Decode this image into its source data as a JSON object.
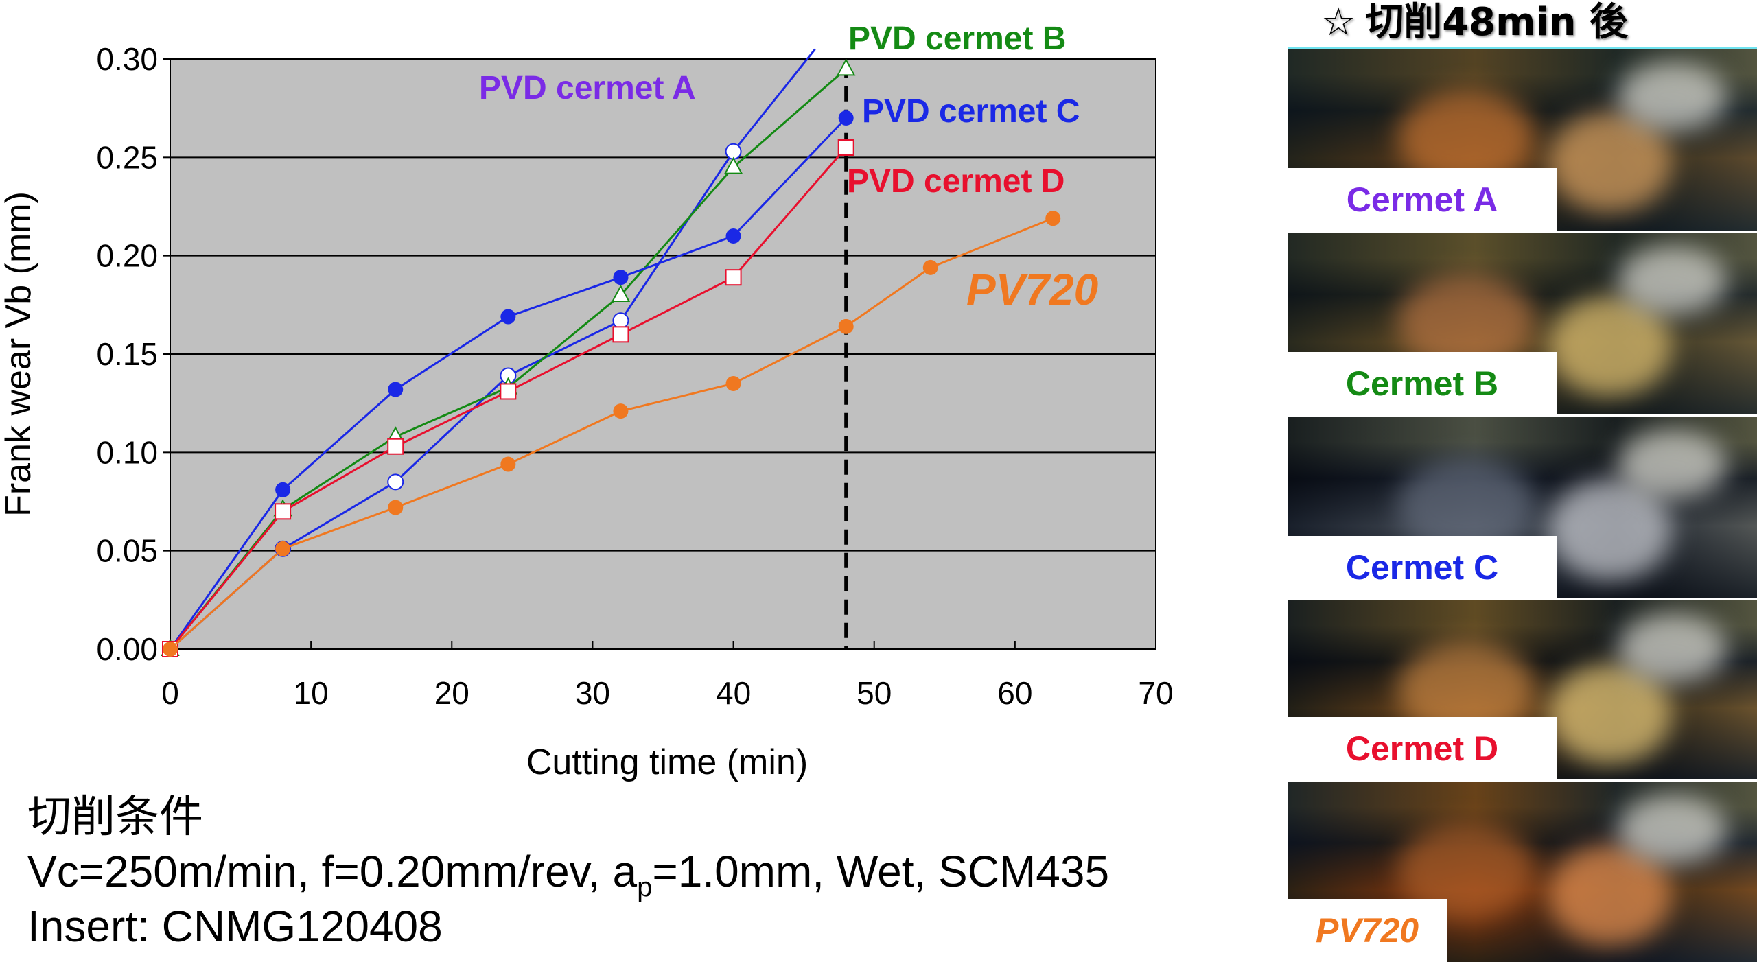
{
  "chart_data": {
    "type": "line",
    "xlabel": "Cutting time (min)",
    "ylabel": "Frank wear Vb (mm)",
    "xlim": [
      0,
      70
    ],
    "ylim": [
      0,
      0.3
    ],
    "x_ticks": [
      "0",
      "10",
      "20",
      "30",
      "40",
      "50",
      "60",
      "70"
    ],
    "y_ticks": [
      "0.00",
      "0.05",
      "0.10",
      "0.15",
      "0.20",
      "0.25",
      "0.30"
    ],
    "grid": "horizontal",
    "plot_background": "#c0c0c0",
    "reference_line": {
      "x": 48,
      "style": "dashed",
      "color": "#000000"
    },
    "series": [
      {
        "name": "PVD cermet A",
        "color": "#7a2be6",
        "line_color": "#1a28e6",
        "marker": "open-circle",
        "x": [
          0,
          8,
          16,
          24,
          32,
          40,
          45.8
        ],
        "y": [
          0.0,
          0.051,
          0.085,
          0.139,
          0.167,
          0.253,
          0.305
        ]
      },
      {
        "name": "PVD cermet B",
        "color": "#148a14",
        "line_color": "#148a14",
        "marker": "open-triangle",
        "x": [
          0,
          8,
          16,
          24,
          32,
          40,
          48
        ],
        "y": [
          0.0,
          0.071,
          0.108,
          0.133,
          0.18,
          0.245,
          0.295
        ]
      },
      {
        "name": "PVD cermet C",
        "color": "#1a28e6",
        "line_color": "#1a28e6",
        "marker": "filled-circle",
        "x": [
          0,
          8,
          16,
          24,
          32,
          40,
          48
        ],
        "y": [
          0.0,
          0.081,
          0.132,
          0.169,
          0.189,
          0.21,
          0.27
        ]
      },
      {
        "name": "PVD cermet D",
        "color": "#e8102e",
        "line_color": "#e8102e",
        "marker": "open-square",
        "x": [
          0,
          8,
          16,
          24,
          32,
          40,
          48
        ],
        "y": [
          0.0,
          0.07,
          0.103,
          0.131,
          0.16,
          0.189,
          0.255
        ]
      },
      {
        "name": "PV720",
        "color": "#f07820",
        "line_color": "#f07820",
        "marker": "filled-circle",
        "x": [
          0,
          8,
          16,
          24,
          32,
          40,
          48,
          54,
          62.7
        ],
        "y": [
          0.0,
          0.051,
          0.072,
          0.094,
          0.121,
          0.135,
          0.164,
          0.194,
          0.219
        ]
      }
    ]
  },
  "conditions": {
    "title": "切削条件",
    "line1_prefix": "Vc=250m/min, f=0.20mm/rev, a",
    "line1_sub": "p",
    "line1_suffix": "=1.0mm, Wet, SCM435",
    "line2": "Insert: CNMG120408"
  },
  "photos": {
    "header_star": "☆",
    "header_text": "切削48min 後",
    "items": [
      {
        "label": "Cermet A",
        "color": "#7a2be6"
      },
      {
        "label": "Cermet B",
        "color": "#148a14"
      },
      {
        "label": "Cermet C",
        "color": "#1a28e6"
      },
      {
        "label": "Cermet D",
        "color": "#e8102e"
      },
      {
        "label": "PV720",
        "color": "#f07820"
      }
    ]
  }
}
